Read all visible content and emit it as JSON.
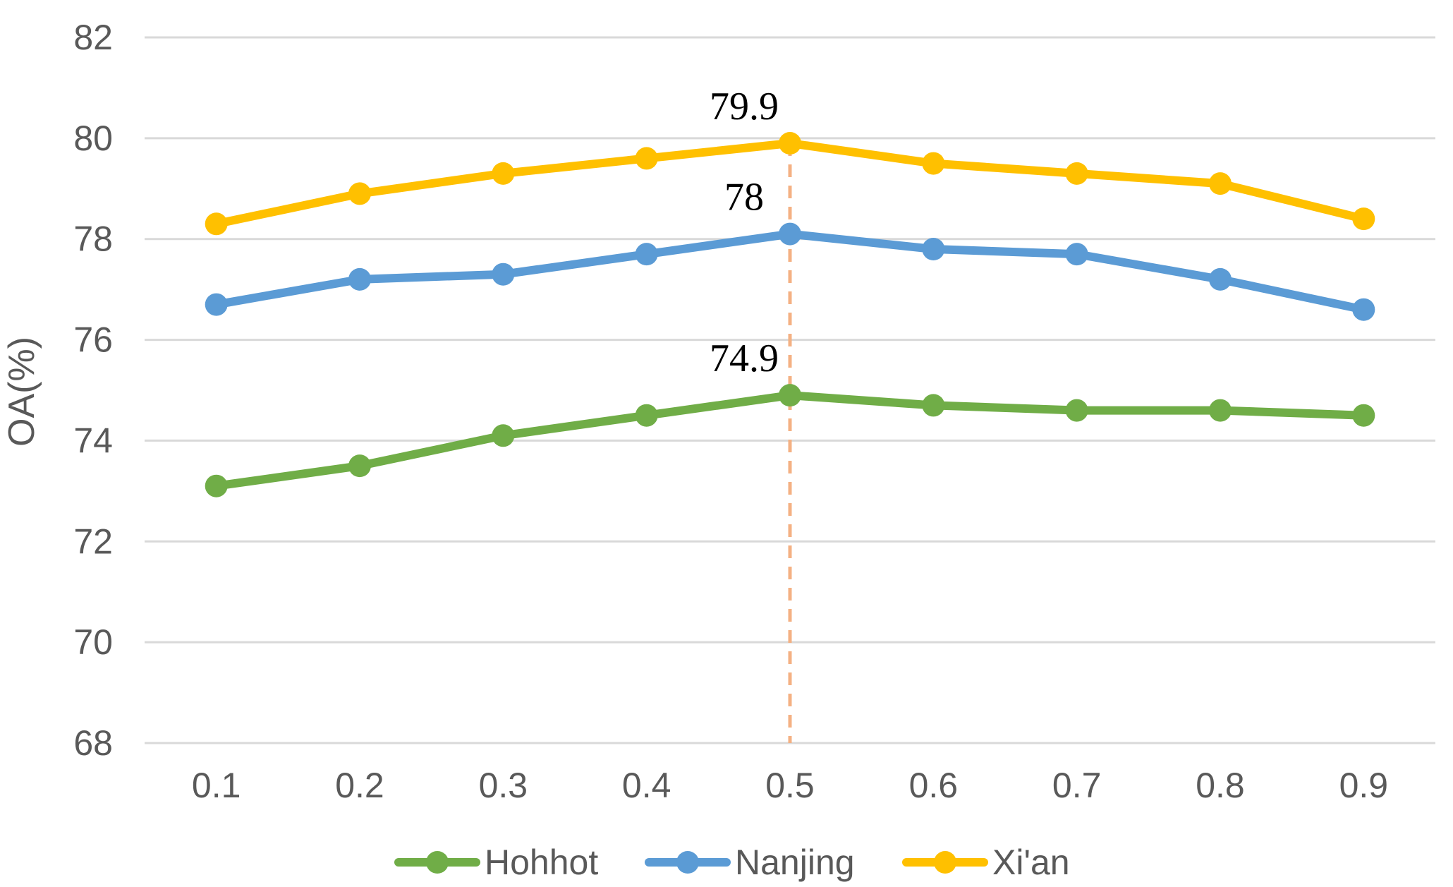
{
  "chart_data": {
    "type": "line",
    "title": "",
    "xlabel": "",
    "ylabel": "OA(%)",
    "x": [
      "0.1",
      "0.2",
      "0.3",
      "0.4",
      "0.5",
      "0.6",
      "0.7",
      "0.8",
      "0.9"
    ],
    "ylim": [
      68,
      82
    ],
    "yticks": [
      "68",
      "70",
      "72",
      "74",
      "76",
      "78",
      "80",
      "82"
    ],
    "grid": true,
    "legend_position": "bottom",
    "series": [
      {
        "name": "Hohhot",
        "color": "#70AD47",
        "values": [
          73.1,
          73.5,
          74.1,
          74.5,
          74.9,
          74.7,
          74.6,
          74.6,
          74.5
        ]
      },
      {
        "name": "Nanjing",
        "color": "#5B9BD5",
        "values": [
          76.7,
          77.2,
          77.3,
          77.7,
          78.1,
          77.8,
          77.7,
          77.2,
          76.6
        ]
      },
      {
        "name": "Xi'an",
        "color": "#FFC000",
        "values": [
          78.3,
          78.9,
          79.3,
          79.6,
          79.9,
          79.5,
          79.3,
          79.1,
          78.4
        ]
      }
    ],
    "annotations": [
      {
        "text": "79.9",
        "series": "Xi'an",
        "x": "0.5"
      },
      {
        "text": "78",
        "series": "Nanjing",
        "x": "0.5"
      },
      {
        "text": "74.9",
        "series": "Hohhot",
        "x": "0.5"
      }
    ],
    "reference_line": {
      "x": "0.5",
      "style": "dashed",
      "color": "#F4B183"
    }
  }
}
